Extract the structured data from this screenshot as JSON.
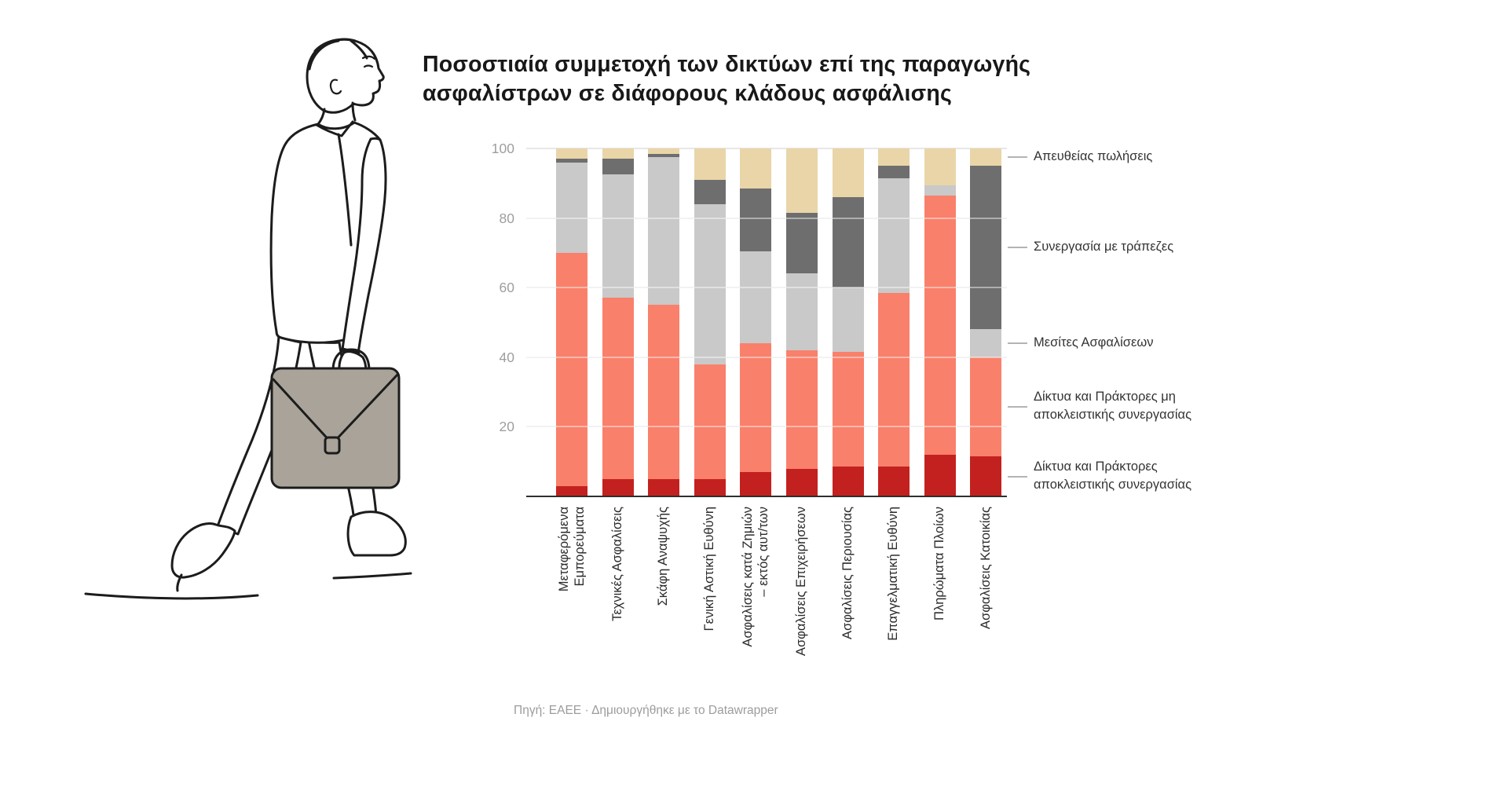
{
  "page": {
    "background_color": "#ffffff"
  },
  "header": {
    "title": "Ποσοστιαία συμμετοχή των δικτύων επί της παραγωγής ασφαλίστρων σε διάφορους κλάδους ασφάλισης",
    "title_lines": [
      "Ποσοστιαία συμμετοχή των δικτύων επί της παραγωγής",
      "ασφαλίστρων σε διάφορους κλάδους ασφάλισης"
    ]
  },
  "footer": {
    "source_prefix": "Πηγή: ΕΑΕΕ · Δημιουργήθηκε με το ",
    "source_link": "Datawrapper"
  },
  "illustration": {
    "description": "line drawing of a businessman walking with a briefcase",
    "line_color": "#1c1c1c",
    "briefcase_fill": "#a9a399"
  },
  "chart_data": {
    "type": "bar",
    "variant": "stacked-100-percent-column",
    "title": "Ποσοστιαία συμμετοχή των δικτύων επί της παραγωγής ασφαλίστρων σε διάφορους κλάδους ασφάλισης",
    "xlabel": "",
    "ylabel": "",
    "ylim": [
      0,
      100
    ],
    "yticks": [
      20,
      40,
      60,
      80,
      100
    ],
    "grid": true,
    "legend_position": "right",
    "categories": [
      "Μεταφερόμενα\nΕμπορεύματα",
      "Τεχνικές Ασφαλίσεις",
      "Σκάφη Αναψυχής",
      "Γενική Αστική Ευθύνη",
      "Ασφαλίσεις κατά Ζημιών\n– εκτός αυτ/των",
      "Ασφαλίσεις Επιχειρήσεων",
      "Ασφαλίσεις Περιουσίας",
      "Επαγγελματική Ευθύνη",
      "Πληρώματα Πλοίων",
      "Ασφαλίσεις Κατοικίας"
    ],
    "series_bottom_to_top": [
      {
        "name": "Δίκτυα και Πράκτορες\nαποκλειστικής συνεργασίας",
        "color": "#c3211f",
        "values": [
          3,
          5,
          5,
          5,
          7,
          8,
          8.5,
          8.5,
          12,
          11.5
        ]
      },
      {
        "name": "Δίκτυα και Πράκτορες μη\nαποκλειστικής συνεργασίας",
        "color": "#f9806b",
        "values": [
          67,
          52,
          50,
          33,
          37,
          34,
          33,
          50,
          74.5,
          28.5
        ]
      },
      {
        "name": "Μεσίτες Ασφαλίσεων",
        "color": "#c9c9c9",
        "values": [
          26,
          35.5,
          42.5,
          46,
          26.5,
          22,
          18.5,
          33,
          3,
          8
        ]
      },
      {
        "name": "Συνεργασία με τράπεζες",
        "color": "#6e6e6e",
        "values": [
          1,
          4.5,
          1,
          7,
          18,
          17.5,
          26,
          3.5,
          0,
          47
        ]
      },
      {
        "name": "Απευθείας πωλήσεις",
        "color": "#e9d5a8",
        "values": [
          3,
          3,
          1.5,
          9,
          11.5,
          18.5,
          14,
          5,
          10.5,
          5
        ]
      }
    ],
    "source": "Πηγή: ΕΑΕΕ · Δημιουργήθηκε με το Datawrapper"
  }
}
